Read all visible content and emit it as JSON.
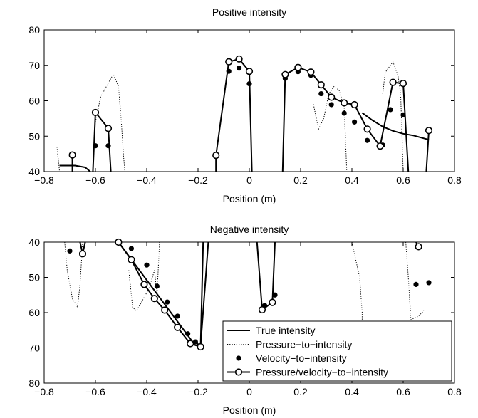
{
  "figure": {
    "colors": {
      "line": "#000000",
      "background": "#ffffff"
    }
  },
  "chart_data": [
    {
      "type": "line",
      "title": "Positive intensity",
      "xlabel": "Position (m)",
      "ylabel": "",
      "xlim": [
        -0.8,
        0.8
      ],
      "ylim": [
        40,
        80
      ],
      "y_reversed": false,
      "xticks": [
        "−0.8",
        "−0.6",
        "−0.4",
        "−0.2",
        "0",
        "0.2",
        "0.4",
        "0.6",
        "0.8"
      ],
      "yticks": [
        "40",
        "50",
        "60",
        "70",
        "80"
      ],
      "grid": false,
      "series": [
        {
          "key": "true",
          "style": "solid",
          "segments": [
            [
              [
                -0.74,
                41.7
              ],
              [
                -0.68,
                41.7
              ],
              [
                -0.64,
                41.2
              ],
              [
                -0.62,
                40
              ]
            ],
            [
              [
                0.44,
                56.6
              ],
              [
                0.48,
                54.5
              ],
              [
                0.52,
                52.7
              ],
              [
                0.56,
                51.5
              ],
              [
                0.6,
                50.7
              ],
              [
                0.64,
                50.2
              ],
              [
                0.7,
                49
              ]
            ]
          ]
        },
        {
          "key": "pressure",
          "style": "dotted",
          "segments": [
            [
              [
                -0.75,
                47
              ],
              [
                -0.74,
                40
              ]
            ],
            [
              [
                -0.6,
                54
              ],
              [
                -0.58,
                61
              ],
              [
                -0.55,
                65
              ],
              [
                -0.53,
                67.5
              ],
              [
                -0.51,
                64
              ],
              [
                -0.5,
                55
              ],
              [
                -0.49,
                44
              ],
              [
                -0.485,
                40
              ]
            ],
            [
              [
                0.25,
                59
              ],
              [
                0.27,
                52
              ],
              [
                0.29,
                55
              ],
              [
                0.31,
                62
              ],
              [
                0.33,
                64
              ],
              [
                0.35,
                63
              ],
              [
                0.37,
                58
              ],
              [
                0.38,
                40
              ]
            ],
            [
              [
                0.52,
                62
              ],
              [
                0.53,
                68
              ],
              [
                0.56,
                71
              ],
              [
                0.58,
                67
              ],
              [
                0.59,
                62
              ],
              [
                0.6,
                40
              ]
            ]
          ]
        },
        {
          "key": "velocity",
          "style": "dots",
          "points": [
            [
              -0.6,
              47.3
            ],
            [
              -0.55,
              47.3
            ],
            [
              -0.08,
              68.3
            ],
            [
              -0.04,
              69.2
            ],
            [
              0,
              64.8
            ],
            [
              0.14,
              66.3
            ],
            [
              0.19,
              68.2
            ],
            [
              0.24,
              67.2
            ],
            [
              0.28,
              62
            ],
            [
              0.32,
              58.9
            ],
            [
              0.37,
              56.5
            ],
            [
              0.41,
              54
            ],
            [
              0.46,
              48.8
            ],
            [
              0.52,
              47.5
            ],
            [
              0.55,
              57.5
            ],
            [
              0.6,
              56
            ]
          ]
        },
        {
          "key": "pv",
          "style": "circles",
          "segments": [
            [
              [
                -0.69,
                40
              ],
              [
                -0.69,
                44.7
              ]
            ],
            [
              [
                -0.61,
                40
              ],
              [
                -0.6,
                56.7
              ],
              [
                -0.55,
                52.2
              ],
              [
                -0.54,
                40
              ]
            ],
            [
              [
                -0.13,
                40
              ],
              [
                -0.13,
                44.6
              ],
              [
                -0.08,
                71
              ],
              [
                -0.04,
                71.8
              ],
              [
                0,
                68.3
              ],
              [
                0.01,
                40
              ]
            ],
            [
              [
                0.13,
                40
              ],
              [
                0.14,
                67.4
              ],
              [
                0.19,
                69.4
              ],
              [
                0.24,
                68.1
              ],
              [
                0.28,
                64.5
              ],
              [
                0.32,
                61
              ],
              [
                0.37,
                59.4
              ],
              [
                0.41,
                58.9
              ],
              [
                0.46,
                52
              ],
              [
                0.51,
                47.2
              ],
              [
                0.56,
                65.2
              ],
              [
                0.6,
                64.9
              ],
              [
                0.62,
                40
              ]
            ],
            [
              [
                0.69,
                40
              ],
              [
                0.7,
                51.6
              ]
            ]
          ],
          "markers": [
            [
              -0.69,
              44.7
            ],
            [
              -0.6,
              56.7
            ],
            [
              -0.55,
              52.2
            ],
            [
              -0.13,
              44.6
            ],
            [
              -0.08,
              71
            ],
            [
              -0.04,
              71.8
            ],
            [
              0,
              68.3
            ],
            [
              0.14,
              67.4
            ],
            [
              0.19,
              69.4
            ],
            [
              0.24,
              68.1
            ],
            [
              0.28,
              64.5
            ],
            [
              0.32,
              61
            ],
            [
              0.37,
              59.4
            ],
            [
              0.41,
              58.9
            ],
            [
              0.46,
              52
            ],
            [
              0.51,
              47.2
            ],
            [
              0.56,
              65.2
            ],
            [
              0.6,
              64.9
            ],
            [
              0.7,
              51.6
            ]
          ]
        }
      ]
    },
    {
      "type": "line",
      "title": "Negative intensity",
      "xlabel": "Position (m)",
      "ylabel": "",
      "xlim": [
        -0.8,
        0.8
      ],
      "ylim": [
        40,
        80
      ],
      "y_reversed": true,
      "xticks": [
        "−0.8",
        "−0.6",
        "−0.4",
        "−0.2",
        "0",
        "0.2",
        "0.4",
        "0.6",
        "0.8"
      ],
      "yticks": [
        "40",
        "50",
        "60",
        "70",
        "80"
      ],
      "grid": false,
      "legend_position": "bottom-right",
      "series": [
        {
          "key": "true",
          "name": "True intensity",
          "style": "solid",
          "segments": [
            [
              [
                -0.51,
                40
              ],
              [
                -0.22,
                68.4
              ],
              [
                -0.19,
                69.2
              ],
              [
                -0.17,
                50
              ],
              [
                -0.16,
                40
              ]
            ]
          ]
        },
        {
          "key": "pressure",
          "name": "Pressure−to−intensity",
          "style": "dotted",
          "segments": [
            [
              [
                -0.72,
                40
              ],
              [
                -0.71,
                48
              ],
              [
                -0.69,
                56
              ],
              [
                -0.67,
                58.5
              ],
              [
                -0.66,
                52
              ],
              [
                -0.65,
                40
              ]
            ],
            [
              [
                -0.47,
                48
              ],
              [
                -0.455,
                58.5
              ],
              [
                -0.44,
                59.5
              ],
              [
                -0.42,
                57
              ],
              [
                -0.39,
                53
              ],
              [
                -0.37,
                48
              ],
              [
                -0.36,
                55
              ],
              [
                -0.35,
                40
              ]
            ],
            [
              [
                0.4,
                40
              ],
              [
                0.43,
                50
              ],
              [
                0.44,
                60
              ],
              [
                0.44,
                63
              ]
            ],
            [
              [
                0.61,
                40
              ],
              [
                0.62,
                50
              ],
              [
                0.63,
                62
              ],
              [
                0.66,
                61
              ],
              [
                0.68,
                59.5
              ]
            ]
          ]
        },
        {
          "key": "velocity",
          "name": "Velocity−to−intensity",
          "style": "dots",
          "points": [
            [
              -0.7,
              42.5
            ],
            [
              -0.65,
              43.5
            ],
            [
              -0.46,
              41.8
            ],
            [
              -0.4,
              46.5
            ],
            [
              -0.36,
              52.5
            ],
            [
              -0.32,
              57
            ],
            [
              -0.28,
              61
            ],
            [
              -0.24,
              66
            ],
            [
              -0.21,
              68.3
            ],
            [
              0.03,
              64
            ],
            [
              0.06,
              58
            ],
            [
              0.1,
              55
            ],
            [
              0.65,
              52
            ],
            [
              0.7,
              51.5
            ]
          ]
        },
        {
          "key": "pv",
          "name": "Pressure/velocity−to−intensity",
          "style": "circles",
          "segments": [
            [
              [
                -0.66,
                40
              ],
              [
                -0.65,
                43.3
              ],
              [
                -0.64,
                40
              ]
            ],
            [
              [
                -0.51,
                40
              ],
              [
                -0.46,
                45
              ],
              [
                -0.41,
                52
              ],
              [
                -0.37,
                56
              ],
              [
                -0.33,
                59.3
              ],
              [
                -0.28,
                64.2
              ],
              [
                -0.23,
                68.8
              ],
              [
                -0.19,
                69.7
              ],
              [
                -0.18,
                40
              ]
            ],
            [
              [
                0.03,
                40
              ],
              [
                0.05,
                59.2
              ],
              [
                0.09,
                57.1
              ],
              [
                0.1,
                40
              ]
            ],
            [
              [
                0.65,
                40
              ],
              [
                0.66,
                41.3
              ]
            ]
          ],
          "markers": [
            [
              -0.65,
              43.3
            ],
            [
              -0.51,
              40
            ],
            [
              -0.46,
              45
            ],
            [
              -0.41,
              52
            ],
            [
              -0.37,
              56
            ],
            [
              -0.33,
              59.3
            ],
            [
              -0.28,
              64.2
            ],
            [
              -0.23,
              68.8
            ],
            [
              -0.19,
              69.7
            ],
            [
              0.05,
              59.2
            ],
            [
              0.09,
              57.1
            ],
            [
              0.66,
              41.3
            ]
          ]
        }
      ]
    }
  ]
}
